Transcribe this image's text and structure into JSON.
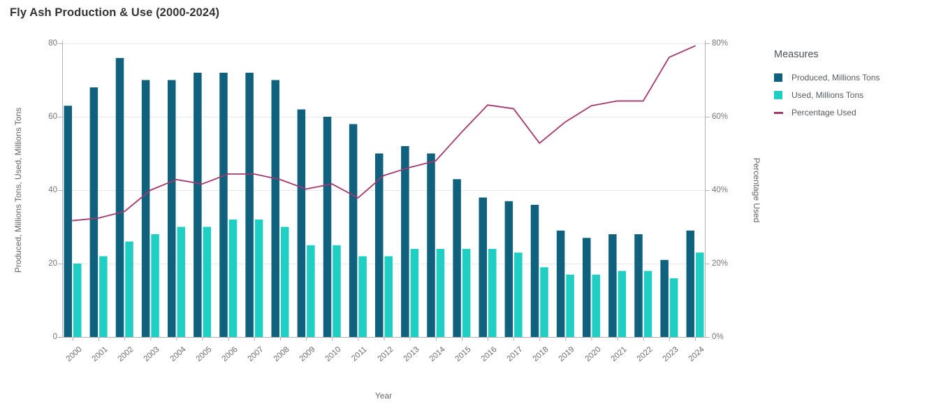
{
  "page": {
    "title": "Fly Ash Production & Use (2000-2024)"
  },
  "axes": {
    "left": {
      "title": "Produced, Millions Tons, Used, Millions Tons",
      "tick_labels": [
        "80",
        "60",
        "40",
        "20",
        "0"
      ],
      "tick_values": [
        80,
        60,
        40,
        20,
        0
      ]
    },
    "right": {
      "title": "Percentage Used",
      "tick_labels": [
        "80%",
        "60%",
        "40%",
        "20%",
        "0%"
      ],
      "tick_values": [
        80,
        60,
        40,
        20,
        0
      ]
    },
    "bottom": {
      "title": "Year"
    }
  },
  "legend": {
    "title": "Measures",
    "items": [
      {
        "label": "Produced, Millions Tons",
        "swatch": "square",
        "color": "#0f617e"
      },
      {
        "label": "Used, Millions Tons",
        "swatch": "square",
        "color": "#1fcfc4"
      },
      {
        "label": "Percentage Used",
        "swatch": "line",
        "color": "#a2386b"
      }
    ]
  },
  "colors": {
    "produced_bar": "#0f617e",
    "used_bar": "#1fcfc4",
    "percentage_line": "#a2386b",
    "gridline": "#e8e8e8",
    "axis_line": "#b3b3b3",
    "tick_text": "#757575",
    "title_text": "#333333",
    "background": "#ffffff"
  },
  "chart_data": {
    "type": "bar",
    "subtype": "grouped-bars-with-line-overlay-dual-axis",
    "title": "Fly Ash Production & Use (2000-2024)",
    "xlabel": "Year",
    "ylabel_left": "Produced, Millions Tons, Used, Millions Tons",
    "ylabel_right": "Percentage Used",
    "ylim_left": [
      0,
      80
    ],
    "ylim_right_percent": [
      0,
      80
    ],
    "grid": true,
    "legend_position": "right",
    "legend_title": "Measures",
    "categories": [
      2000,
      2001,
      2002,
      2003,
      2004,
      2005,
      2006,
      2007,
      2008,
      2009,
      2010,
      2011,
      2012,
      2013,
      2014,
      2015,
      2016,
      2017,
      2018,
      2019,
      2020,
      2021,
      2022,
      2023,
      2024
    ],
    "series": [
      {
        "name": "Produced, Millions Tons",
        "type": "bar",
        "axis": "left",
        "color": "#0f617e",
        "values": [
          63,
          68,
          76,
          70,
          70,
          72,
          72,
          72,
          70,
          62,
          60,
          58,
          50,
          52,
          50,
          43,
          38,
          37,
          36,
          29,
          27,
          28,
          28,
          21,
          29
        ]
      },
      {
        "name": "Used, Millions Tons",
        "type": "bar",
        "axis": "left",
        "color": "#1fcfc4",
        "values": [
          20,
          22,
          26,
          28,
          30,
          30,
          32,
          32,
          30,
          25,
          25,
          22,
          22,
          24,
          24,
          24,
          24,
          23,
          19,
          17,
          17,
          18,
          18,
          16,
          23
        ]
      },
      {
        "name": "Percentage Used",
        "type": "line",
        "axis": "right",
        "color": "#a2386b",
        "values": [
          31.7,
          32.4,
          34.2,
          40.0,
          42.9,
          41.7,
          44.4,
          44.4,
          42.9,
          40.3,
          41.7,
          37.9,
          44.0,
          46.2,
          48.0,
          55.8,
          63.2,
          62.2,
          52.8,
          58.6,
          63.0,
          64.3,
          64.3,
          76.2,
          79.3
        ]
      }
    ]
  }
}
